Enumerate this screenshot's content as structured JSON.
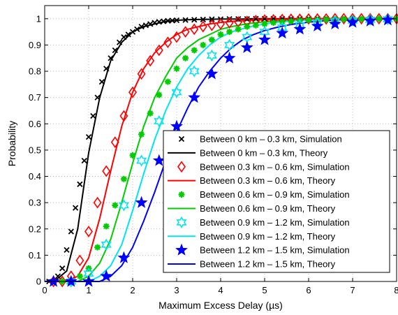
{
  "chart_data": {
    "type": "line",
    "xlabel": "Maximum Excess Delay (µs)",
    "ylabel": "Probability",
    "xlim": [
      0,
      8
    ],
    "ylim": [
      0,
      1.05
    ],
    "xticks": [
      "0",
      "1",
      "2",
      "3",
      "4",
      "5",
      "6",
      "7",
      "8"
    ],
    "yticks": [
      "0",
      "0.1",
      "0.2",
      "0.3",
      "0.4",
      "0.5",
      "0.6",
      "0.7",
      "0.8",
      "0.9",
      "1"
    ],
    "grid": true,
    "legend_position": "bottom-right",
    "x": [
      0,
      0.25,
      0.5,
      0.75,
      1,
      1.25,
      1.5,
      1.75,
      2,
      2.25,
      2.5,
      2.75,
      3,
      3.25,
      3.5,
      3.75,
      4,
      4.25,
      4.5,
      4.75,
      5,
      5.25,
      5.5,
      5.75,
      6,
      6.25,
      6.5,
      6.75,
      7,
      7.25,
      7.5,
      7.75,
      8
    ],
    "series": [
      {
        "name": "Between 0 km – 0.3 km, Simulation",
        "kind": "markers",
        "marker": "x",
        "color": "#000000",
        "x": [
          0.1,
          0.2,
          0.3,
          0.4,
          0.5,
          0.6,
          0.7,
          0.8,
          0.9,
          1.0,
          1.1,
          1.2,
          1.3,
          1.4,
          1.5,
          1.6,
          1.7,
          1.8,
          1.9,
          2.0,
          2.1,
          2.2,
          2.3,
          2.4,
          2.5,
          2.6,
          2.7,
          2.8,
          2.9,
          3.0,
          3.2,
          3.4,
          3.6,
          3.8,
          4.0,
          4.2,
          4.4,
          4.6,
          4.8,
          5.0,
          5.2,
          5.4,
          5.6,
          5.8,
          6.0,
          6.2,
          6.4,
          6.6,
          6.8,
          7.0,
          7.2,
          7.4,
          7.6,
          7.8,
          8.0
        ],
        "y": [
          0.0,
          0.0,
          0.02,
          0.05,
          0.12,
          0.19,
          0.28,
          0.37,
          0.46,
          0.55,
          0.63,
          0.7,
          0.76,
          0.81,
          0.85,
          0.88,
          0.91,
          0.93,
          0.94,
          0.95,
          0.96,
          0.97,
          0.975,
          0.98,
          0.985,
          0.988,
          0.99,
          0.992,
          0.993,
          0.994,
          0.995,
          0.996,
          0.997,
          0.998,
          0.998,
          0.999,
          0.999,
          0.999,
          1.0,
          1.0,
          1.0,
          1.0,
          1.0,
          1.0,
          1.0,
          1.0,
          1.0,
          1.0,
          1.0,
          1.0,
          1.0,
          1.0,
          1.0,
          1.0,
          1.0
        ]
      },
      {
        "name": "Between 0 km – 0.3 km, Theory",
        "kind": "line",
        "color": "#000000",
        "y": [
          0.0,
          0.005,
          0.04,
          0.2,
          0.49,
          0.7,
          0.84,
          0.91,
          0.95,
          0.97,
          0.98,
          0.99,
          0.994,
          0.996,
          0.997,
          0.998,
          0.999,
          0.999,
          0.999,
          1.0,
          1.0,
          1.0,
          1.0,
          1.0,
          1.0,
          1.0,
          1.0,
          1.0,
          1.0,
          1.0,
          1.0,
          1.0,
          1.0
        ]
      },
      {
        "name": "Between 0.3 km – 0.6 km, Simulation",
        "kind": "markers",
        "marker": "diamond",
        "color": "#ff0000",
        "x": [
          0.2,
          0.4,
          0.6,
          0.8,
          1.0,
          1.2,
          1.4,
          1.6,
          1.8,
          2.0,
          2.2,
          2.4,
          2.6,
          2.8,
          3.0,
          3.2,
          3.4,
          3.6,
          3.8,
          4.0,
          4.2,
          4.4,
          4.6,
          4.8,
          5.0,
          5.2,
          5.4,
          5.6,
          5.8,
          6.0,
          6.2,
          6.4,
          6.6,
          6.8,
          7.0,
          7.2,
          7.4,
          7.6,
          7.8,
          8.0
        ],
        "y": [
          0.0,
          0.0,
          0.02,
          0.08,
          0.19,
          0.3,
          0.42,
          0.53,
          0.63,
          0.72,
          0.79,
          0.84,
          0.88,
          0.91,
          0.93,
          0.95,
          0.96,
          0.97,
          0.975,
          0.98,
          0.985,
          0.988,
          0.99,
          0.993,
          0.995,
          0.996,
          0.997,
          0.998,
          0.998,
          0.999,
          0.999,
          0.999,
          1.0,
          1.0,
          1.0,
          1.0,
          1.0,
          1.0,
          1.0,
          1.0
        ]
      },
      {
        "name": "Between 0.3 km – 0.6 km, Theory",
        "kind": "line",
        "color": "#ff0000",
        "y": [
          0.0,
          0.0,
          0.0,
          0.02,
          0.09,
          0.24,
          0.42,
          0.59,
          0.72,
          0.81,
          0.87,
          0.91,
          0.94,
          0.96,
          0.97,
          0.98,
          0.986,
          0.99,
          0.993,
          0.995,
          0.997,
          0.998,
          0.998,
          0.999,
          0.999,
          1.0,
          1.0,
          1.0,
          1.0,
          1.0,
          1.0,
          1.0,
          1.0
        ]
      },
      {
        "name": "Between 0.6 km – 0.9 km, Simulation",
        "kind": "markers",
        "marker": "asterisk",
        "color": "#00cc00",
        "x": [
          0.4,
          0.6,
          0.8,
          1.0,
          1.2,
          1.4,
          1.6,
          1.8,
          2.0,
          2.2,
          2.4,
          2.6,
          2.8,
          3.0,
          3.2,
          3.4,
          3.6,
          3.8,
          4.0,
          4.2,
          4.4,
          4.6,
          4.8,
          5.0,
          5.2,
          5.4,
          5.6,
          5.8,
          6.0,
          6.2,
          6.4,
          6.6,
          6.8,
          7.0,
          7.2,
          7.4,
          7.6,
          7.8,
          8.0
        ],
        "y": [
          0.0,
          0.0,
          0.02,
          0.05,
          0.13,
          0.21,
          0.29,
          0.39,
          0.48,
          0.56,
          0.64,
          0.71,
          0.76,
          0.81,
          0.85,
          0.88,
          0.9,
          0.92,
          0.94,
          0.95,
          0.96,
          0.97,
          0.975,
          0.98,
          0.985,
          0.988,
          0.99,
          0.993,
          0.995,
          0.996,
          0.997,
          0.998,
          0.998,
          0.999,
          0.999,
          0.999,
          1.0,
          1.0,
          1.0
        ]
      },
      {
        "name": "Between 0.6 km – 0.9 km, Theory",
        "kind": "line",
        "color": "#00cc00",
        "y": [
          0.0,
          0.0,
          0.0,
          0.0,
          0.02,
          0.07,
          0.16,
          0.3,
          0.45,
          0.59,
          0.7,
          0.78,
          0.85,
          0.89,
          0.92,
          0.94,
          0.96,
          0.97,
          0.978,
          0.984,
          0.988,
          0.991,
          0.994,
          0.996,
          0.997,
          0.998,
          0.998,
          0.999,
          0.999,
          1.0,
          1.0,
          1.0,
          1.0
        ]
      },
      {
        "name": "Between 0.9 km – 1.2 km, Simulation",
        "kind": "markers",
        "marker": "hexagram",
        "color": "#00e5ee",
        "x": [
          0.6,
          1.0,
          1.4,
          1.8,
          2.2,
          2.6,
          3.0,
          3.4,
          3.8,
          4.2,
          4.6,
          5.0,
          5.4,
          5.8,
          6.2,
          6.6,
          7.0,
          7.4,
          7.8
        ],
        "y": [
          0.0,
          0.03,
          0.14,
          0.29,
          0.46,
          0.61,
          0.72,
          0.8,
          0.86,
          0.9,
          0.93,
          0.95,
          0.966,
          0.976,
          0.984,
          0.99,
          0.993,
          0.996,
          0.998
        ]
      },
      {
        "name": "Between 0.9 km – 1.2 km, Theory",
        "kind": "line",
        "color": "#00e5ee",
        "y": [
          0.0,
          0.0,
          0.0,
          0.0,
          0.0,
          0.02,
          0.06,
          0.14,
          0.27,
          0.41,
          0.54,
          0.65,
          0.74,
          0.81,
          0.86,
          0.9,
          0.93,
          0.95,
          0.962,
          0.972,
          0.98,
          0.986,
          0.99,
          0.993,
          0.995,
          0.997,
          0.998,
          0.998,
          0.999,
          0.999,
          1.0,
          1.0,
          1.0
        ]
      },
      {
        "name": "Between 1.2 km – 1.5 km, Simulation",
        "kind": "markers",
        "marker": "pentagram",
        "color": "#0000ff",
        "x": [
          0.2,
          0.6,
          1.0,
          1.4,
          1.8,
          2.2,
          2.6,
          3.0,
          3.4,
          3.8,
          4.2,
          4.6,
          5.0,
          5.4,
          5.8,
          6.2,
          6.6,
          7.0,
          7.4,
          7.8
        ],
        "y": [
          0.0,
          0.0,
          0.0,
          0.02,
          0.09,
          0.3,
          0.46,
          0.59,
          0.7,
          0.79,
          0.85,
          0.89,
          0.92,
          0.945,
          0.96,
          0.972,
          0.98,
          0.986,
          0.991,
          0.995
        ]
      },
      {
        "name": "Between 1.2 km – 1.5 km, Theory",
        "kind": "line",
        "color": "#0000ff",
        "y": [
          0.0,
          0.0,
          0.0,
          0.0,
          0.0,
          0.0,
          0.02,
          0.06,
          0.13,
          0.23,
          0.34,
          0.46,
          0.57,
          0.66,
          0.74,
          0.8,
          0.85,
          0.89,
          0.92,
          0.94,
          0.955,
          0.966,
          0.975,
          0.982,
          0.987,
          0.991,
          0.994,
          0.996,
          0.997,
          0.998,
          0.999,
          0.999,
          1.0
        ]
      }
    ]
  }
}
